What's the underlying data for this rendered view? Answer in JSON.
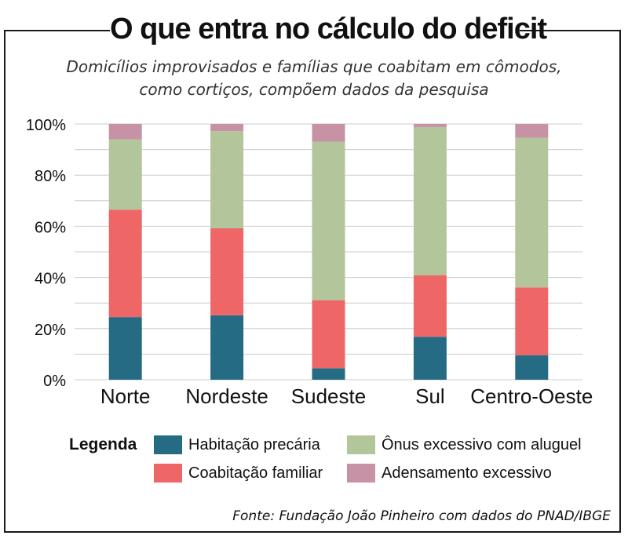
{
  "title": "O que entra no cálculo do deficit",
  "subtitle_line1": "Domicílios improvisados e famílias que coabitam em cômodos,",
  "subtitle_line2": "como cortiços, compõem dados da pesquisa",
  "legend_title": "Legenda",
  "source": "Fonte:  Fundação João Pinheiro com dados do PNAD/IBGE",
  "colors": {
    "habitacao": "#256b84",
    "coabitacao": "#ef6667",
    "onus": "#b3c59a",
    "adensamento": "#c892a6",
    "grid": "#cccccc",
    "axis_text": "#111111"
  },
  "chart_data": {
    "type": "bar",
    "stacked": true,
    "categories": [
      "Norte",
      "Nordeste",
      "Sudeste",
      "Sul",
      "Centro-Oeste"
    ],
    "series": [
      {
        "name": "Habitação precária",
        "color_key": "habitacao",
        "values": [
          24.5,
          25.2,
          4.5,
          16.8,
          9.6
        ]
      },
      {
        "name": "Coabitação familiar",
        "color_key": "coabitacao",
        "values": [
          42.0,
          34.0,
          26.6,
          24.0,
          26.5
        ]
      },
      {
        "name": "Ônus excessivo com aluguel",
        "color_key": "onus",
        "values": [
          27.5,
          38.0,
          62.0,
          58.0,
          58.5
        ]
      },
      {
        "name": "Adensamento excessivo",
        "color_key": "adensamento",
        "values": [
          6.0,
          2.8,
          6.9,
          1.2,
          5.4
        ]
      }
    ],
    "yticks": [
      "0%",
      "20%",
      "40%",
      "60%",
      "80%",
      "100%"
    ],
    "ylim": [
      0,
      100
    ],
    "grid": true,
    "legend_position": "bottom"
  }
}
